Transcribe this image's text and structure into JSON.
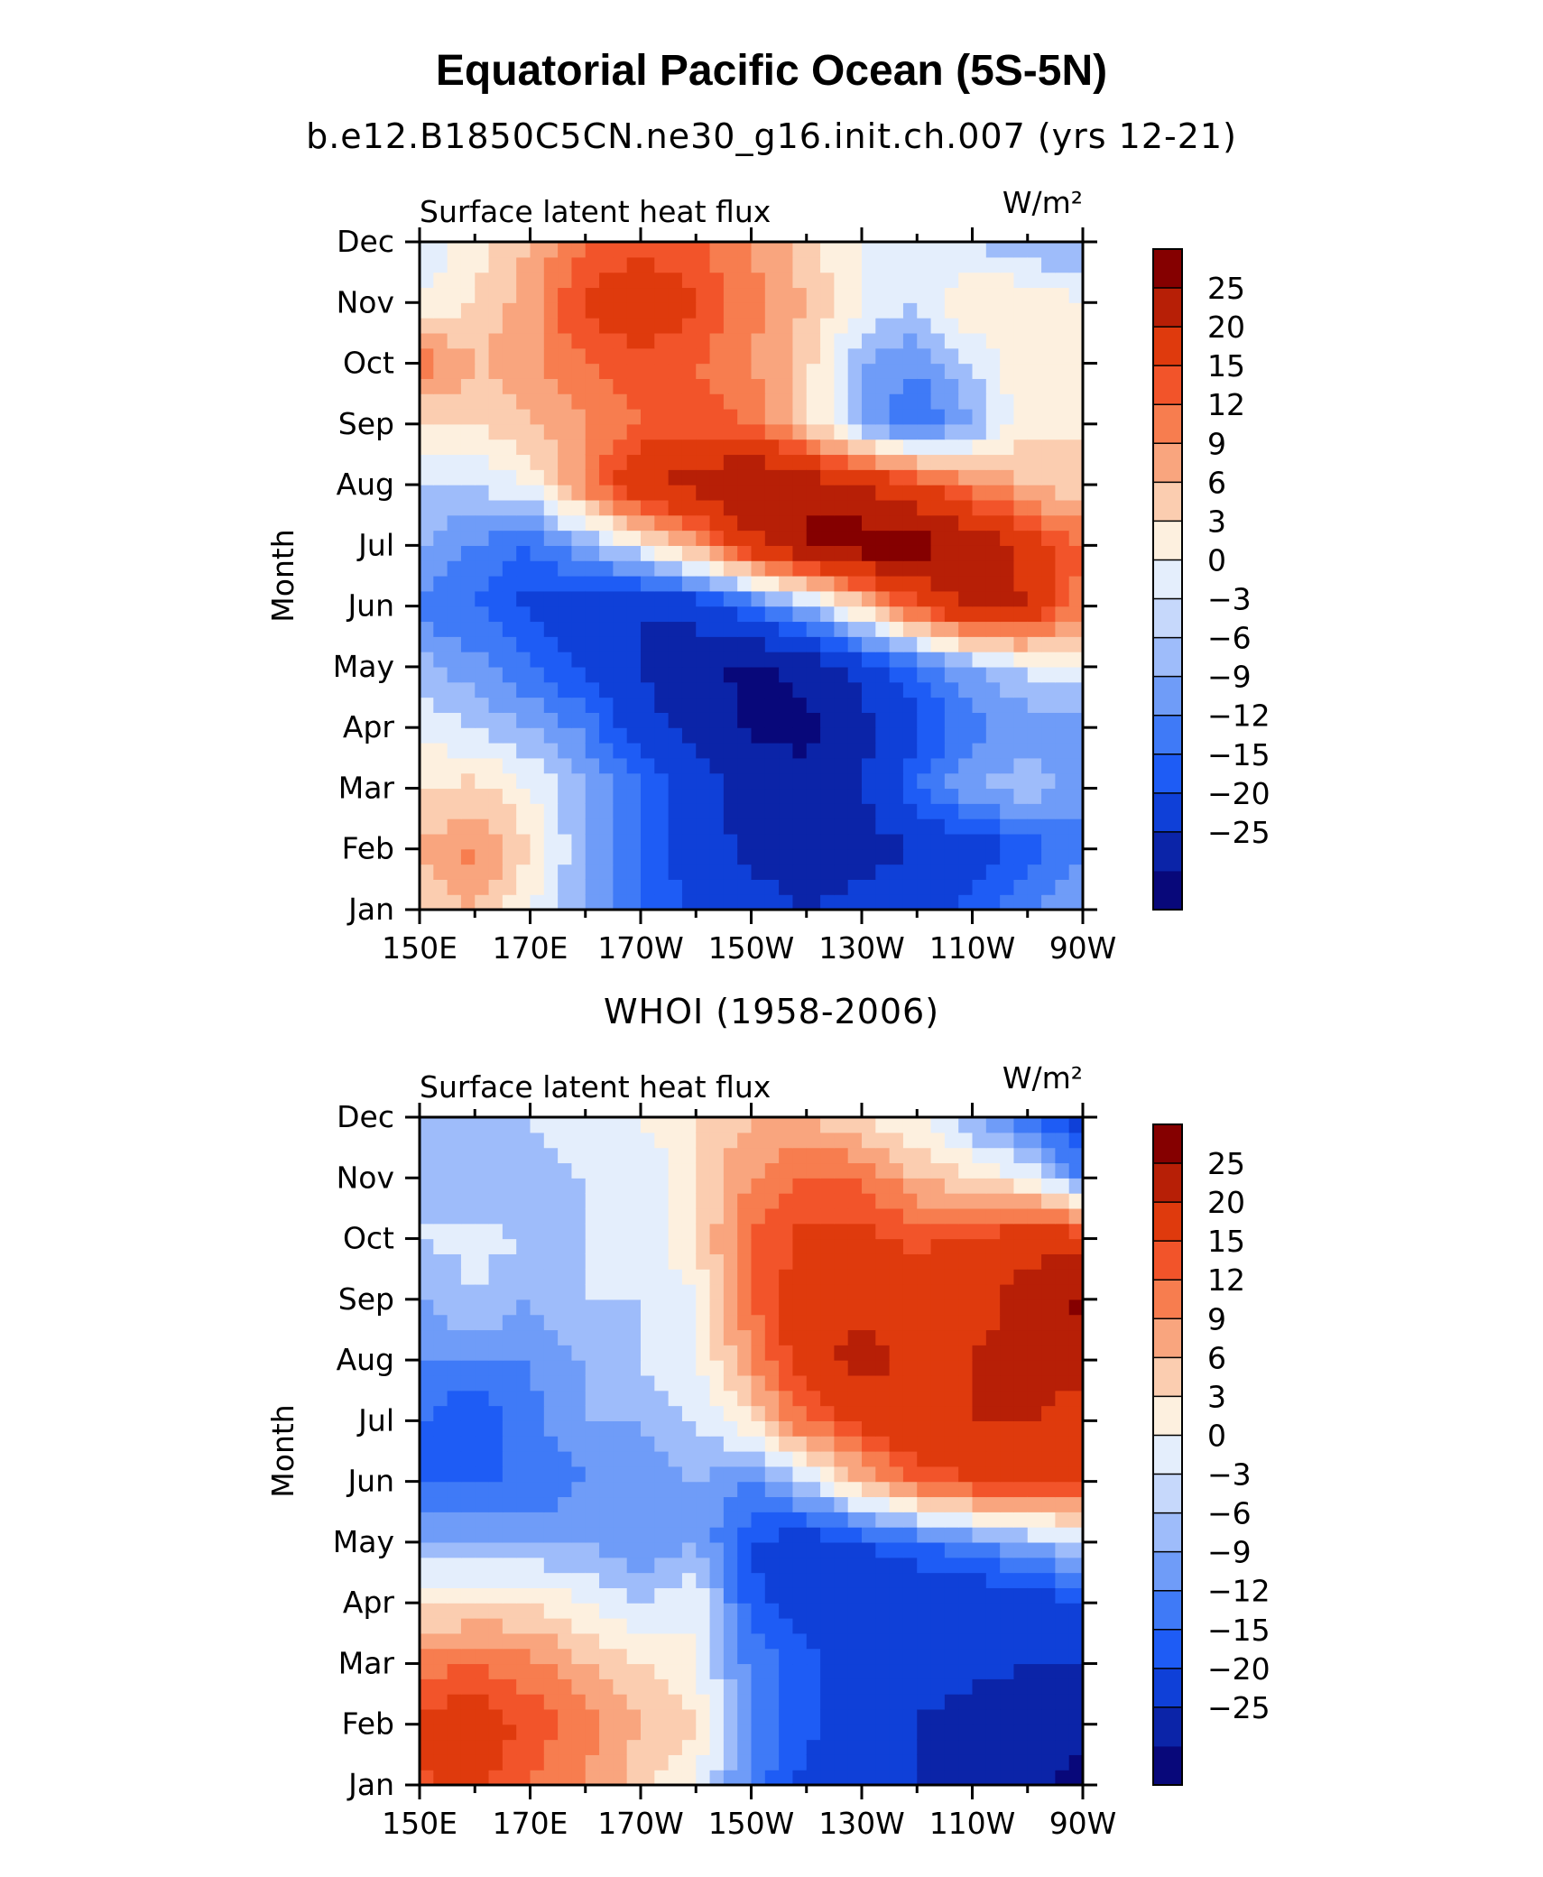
{
  "figure": {
    "title": "Equatorial Pacific Ocean (5S-5N)"
  },
  "colors": {
    "levels": [
      "#08087a",
      "#0b24a8",
      "#0f40d8",
      "#1e5cf5",
      "#3f7af7",
      "#6f9cf8",
      "#9ebcfa",
      "#c6d8fb",
      "#e4eefc",
      "#fdf0df",
      "#fbcdb0",
      "#f9a57e",
      "#f77d4f",
      "#f2542a",
      "#df3a0d",
      "#b71f06",
      "#850000"
    ]
  },
  "chart_data": [
    {
      "type": "heatmap",
      "title": "b.e12.B1850C5CN.ne30_g16.init.ch.007 (yrs 12-21)",
      "subtitle_left": "Surface latent heat flux",
      "units": "W/m²",
      "xlabel": "",
      "ylabel": "Month",
      "x": [
        "150E",
        "170E",
        "170W",
        "150W",
        "130W",
        "110W",
        "90W"
      ],
      "x_values": [
        150,
        170,
        190,
        210,
        230,
        250,
        270
      ],
      "xlim": [
        150,
        270
      ],
      "y": [
        "Jan",
        "Feb",
        "Mar",
        "Apr",
        "May",
        "Jun",
        "Jul",
        "Aug",
        "Sep",
        "Oct",
        "Nov",
        "Dec"
      ],
      "grid": false,
      "colorbar_levels": [
        "25",
        "20",
        "15",
        "12",
        "9",
        "6",
        "3",
        "0",
        "-3",
        "-6",
        "-9",
        "-12",
        "-15",
        "-20",
        "-25"
      ],
      "colorbar_placement": "right",
      "z": [
        [
          2,
          6,
          0,
          -6,
          -12,
          -16,
          -18,
          -20,
          -18,
          -16,
          -14,
          -10,
          -6
        ],
        [
          6,
          10,
          3,
          -6,
          -12,
          -18,
          -21,
          -23,
          -22,
          -20,
          -18,
          -14,
          -10
        ],
        [
          3,
          4,
          0,
          -6,
          -12,
          -18,
          -22,
          -24,
          -20,
          -12,
          -6,
          -4,
          -8
        ],
        [
          -1,
          -3,
          -6,
          -10,
          -18,
          -22,
          -26,
          -26,
          -22,
          -16,
          -10,
          -8,
          -8
        ],
        [
          -5,
          -8,
          -12,
          -16,
          -20,
          -24,
          -26,
          -24,
          -18,
          -12,
          -6,
          -2,
          0
        ],
        [
          -10,
          -12,
          -16,
          -18,
          -20,
          -18,
          -12,
          -6,
          4,
          14,
          22,
          20,
          10
        ],
        [
          -6,
          -9,
          -12,
          -6,
          0,
          8,
          18,
          26,
          28,
          27,
          24,
          18,
          12
        ],
        [
          -3,
          -3,
          0,
          10,
          20,
          22,
          26,
          24,
          20,
          16,
          10,
          6,
          3
        ],
        [
          2,
          3,
          6,
          9,
          12,
          14,
          12,
          4,
          -6,
          -12,
          -6,
          2,
          3
        ],
        [
          12,
          6,
          8,
          12,
          14,
          12,
          9,
          4,
          -6,
          -9,
          -3,
          3,
          3
        ],
        [
          0,
          3,
          8,
          16,
          18,
          16,
          10,
          6,
          0,
          -3,
          3,
          3,
          0
        ],
        [
          -3,
          2,
          6,
          12,
          14,
          12,
          9,
          4,
          0,
          -3,
          -3,
          -6,
          -6
        ]
      ]
    },
    {
      "type": "heatmap",
      "title": "WHOI (1958-2006)",
      "subtitle_left": "Surface latent heat flux",
      "units": "W/m²",
      "xlabel": "",
      "ylabel": "Month",
      "x": [
        "150E",
        "170E",
        "170W",
        "150W",
        "130W",
        "110W",
        "90W"
      ],
      "x_values": [
        150,
        170,
        190,
        210,
        230,
        250,
        270
      ],
      "xlim": [
        150,
        270
      ],
      "y": [
        "Jan",
        "Feb",
        "Mar",
        "Apr",
        "May",
        "Jun",
        "Jul",
        "Aug",
        "Sep",
        "Oct",
        "Nov",
        "Dec"
      ],
      "grid": false,
      "colorbar_levels": [
        "25",
        "20",
        "15",
        "12",
        "9",
        "6",
        "3",
        "0",
        "-3",
        "-6",
        "-9",
        "-12",
        "-15",
        "-20",
        "-25"
      ],
      "colorbar_placement": "right",
      "z": [
        [
          14,
          16,
          12,
          9,
          4,
          0,
          -10,
          -16,
          -18,
          -20,
          -22,
          -24,
          -26
        ],
        [
          16,
          18,
          14,
          10,
          6,
          3,
          -9,
          -14,
          -18,
          -20,
          -23,
          -24,
          -24
        ],
        [
          10,
          12,
          10,
          6,
          3,
          0,
          -10,
          -14,
          -18,
          -18,
          -18,
          -20,
          -20
        ],
        [
          2,
          3,
          3,
          0,
          -3,
          0,
          -14,
          -18,
          -20,
          -20,
          -20,
          -18,
          -15
        ],
        [
          -6,
          -6,
          -6,
          -6,
          -9,
          -6,
          -15,
          -18,
          -15,
          -12,
          -9,
          -6,
          -3
        ],
        [
          -12,
          -12,
          -12,
          -9,
          -9,
          -6,
          -9,
          -3,
          6,
          12,
          15,
          16,
          16
        ],
        [
          -12,
          -15,
          -10,
          -6,
          -6,
          -3,
          3,
          12,
          16,
          20,
          20,
          20,
          18
        ],
        [
          -9,
          -9,
          -9,
          -6,
          -3,
          0,
          9,
          18,
          22,
          18,
          20,
          22,
          22
        ],
        [
          -6,
          -3,
          -6,
          -3,
          -3,
          0,
          12,
          18,
          18,
          16,
          18,
          22,
          26
        ],
        [
          -3,
          -2,
          -3,
          -3,
          -3,
          3,
          12,
          16,
          16,
          14,
          16,
          18,
          18
        ],
        [
          -3,
          -6,
          -6,
          -3,
          -3,
          3,
          9,
          12,
          12,
          6,
          3,
          0,
          -9
        ],
        [
          -3,
          -3,
          -3,
          0,
          0,
          3,
          6,
          6,
          3,
          0,
          -6,
          -12,
          -18
        ]
      ]
    }
  ]
}
